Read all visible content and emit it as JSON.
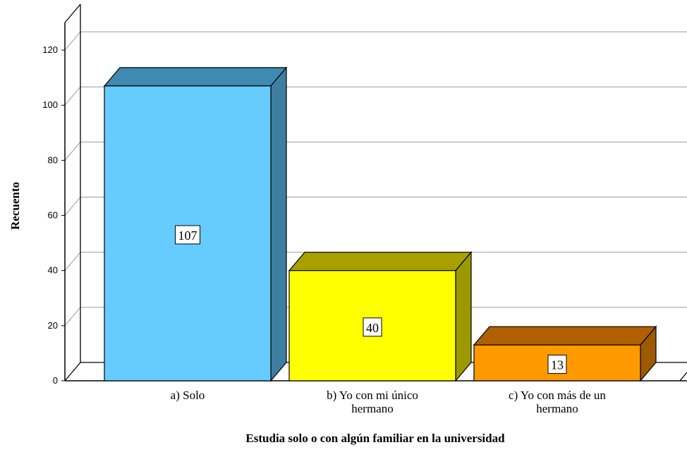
{
  "chart_data": {
    "type": "bar",
    "title": "",
    "xlabel": "Estudia solo o con algún familiar en la universidad",
    "ylabel": "Recuento",
    "ylim": [
      0,
      130
    ],
    "yticks": [
      0,
      20,
      40,
      60,
      80,
      100,
      120
    ],
    "grid": true,
    "three_d": true,
    "categories": [
      [
        "a) Solo"
      ],
      [
        "b) Yo con mi único",
        "hermano"
      ],
      [
        "c) Yo con más de un",
        "hermano"
      ]
    ],
    "values": [
      107,
      40,
      13
    ],
    "data_labels": [
      "107",
      "40",
      "13"
    ],
    "colors": {
      "fronts": [
        "#66ccff",
        "#ffff00",
        "#ff9900"
      ],
      "tops": [
        "#3e8ab0",
        "#a8a000",
        "#b06000"
      ],
      "sides": [
        "#3f7ea3",
        "#9b9800",
        "#9e5a00"
      ]
    }
  }
}
